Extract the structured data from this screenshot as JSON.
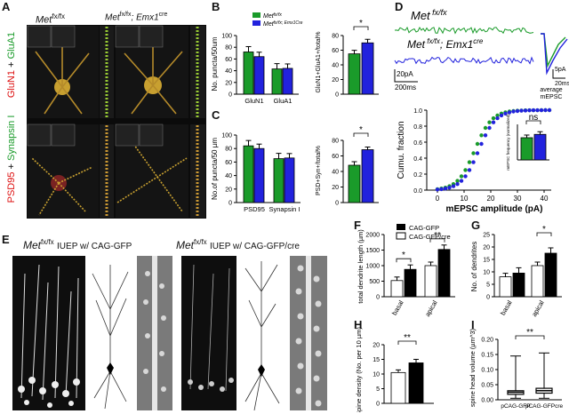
{
  "panels": {
    "A": {
      "letter": "A",
      "col_ctrl": "Met",
      "col_ctrl_sup": "fx/fx",
      "col_cko": "Met",
      "col_cko_sup": "fx/fx",
      "col_cko_rest": "; Emx1",
      "col_cko_sup2": "cre",
      "row1_red": "GluN1",
      "row1_plus": " + ",
      "row1_green": "GluA1",
      "row2_red": "PSD95",
      "row2_plus": " + ",
      "row2_green": "Synapsin I"
    },
    "B": {
      "letter": "B",
      "legend": [
        {
          "name": "Met",
          "sup": "fx/fx",
          "color": "#1a9b2a"
        },
        {
          "name": "Met",
          "sup": "fx/fx; Emx1Cre",
          "color": "#2222dd"
        }
      ],
      "ylabel": "No. puncta/50um",
      "categories": [
        "GluN1",
        "GluA1"
      ],
      "ctrl": [
        72,
        43
      ],
      "cko": [
        64,
        44
      ],
      "yticks": [
        "0",
        "20",
        "40",
        "60",
        "80",
        "100"
      ],
      "ylabel2": "GluN1+GluA1+/total%",
      "ctrl2": 55,
      "cko2": 70,
      "yticks2": [
        "0",
        "20",
        "40",
        "60",
        "80"
      ],
      "sig2": "*"
    },
    "C": {
      "letter": "C",
      "ylabel": "No.of puncta/50 µm",
      "categories": [
        "PSD95",
        "Synapsin I"
      ],
      "ctrl": [
        84,
        65
      ],
      "cko": [
        80,
        66
      ],
      "yticks": [
        "0",
        "20",
        "40",
        "60",
        "80",
        "100"
      ],
      "ylabel2": "PSD+Syn+/total%",
      "ctrl2": 48,
      "cko2": 68,
      "yticks2": [
        "0",
        "20",
        "40",
        "60",
        "80"
      ],
      "sig2": "*"
    },
    "D": {
      "letter": "D",
      "trace1": "Met",
      "trace1_sup": "fx/fx",
      "trace2": "Met",
      "trace2_sup": "fx/fx",
      "trace2_rest": "; Emx1",
      "trace2_sup2": "cre",
      "scale_left": [
        "20pA",
        "200ms"
      ],
      "scale_right": [
        "5pA",
        "20ms"
      ],
      "avg_label": [
        "average",
        "mEPSC"
      ],
      "ylabel": "Cumu. fraction",
      "xlabel": "mEPSC amplitude (pA)",
      "xticks": [
        "0",
        "10",
        "20",
        "30",
        "40"
      ],
      "yticks": [
        "0.0",
        "0.2",
        "0.4",
        "0.6",
        "0.8",
        "1.0"
      ],
      "inset_ylabel": "mEPSC frequency (normalized)",
      "inset_values": [
        1.0,
        1.15
      ],
      "inset_sig": "ns"
    },
    "E": {
      "letter": "E",
      "left_title": "Met",
      "left_sup": "fx/fx",
      "left_rest": "IUEP w/ CAG-GFP",
      "right_title": "Met",
      "right_sup": "fx/fx",
      "right_rest": "IUEP w/ CAG-GFP/cre"
    },
    "F": {
      "letter": "F",
      "legend": [
        "CAG-GFP",
        "CAG-GFP/cre"
      ],
      "ylabel": "total dendrite length (µm)",
      "categories": [
        "basal",
        "apical"
      ],
      "gfp": [
        520,
        1000
      ],
      "cre": [
        880,
        1520
      ],
      "yticks": [
        "0",
        "500",
        "1000",
        "1500",
        "2000"
      ],
      "sig": [
        "*",
        "**"
      ]
    },
    "G": {
      "letter": "G",
      "ylabel": "No. of dendrites",
      "categories": [
        "basal",
        "apical"
      ],
      "gfp": [
        8,
        12.5
      ],
      "cre": [
        9.5,
        17.5
      ],
      "yticks": [
        "0",
        "5",
        "10",
        "15",
        "20",
        "25"
      ],
      "sig": "*"
    },
    "H": {
      "letter": "H",
      "ylabel": "Spine density (No. per 10 µm)",
      "values": [
        10.5,
        13.8
      ],
      "yticks": [
        "0",
        "5",
        "10",
        "15",
        "20"
      ],
      "sig": "**"
    },
    "I": {
      "letter": "I",
      "ylabel": "spine head volume (µm^3)",
      "categories": [
        "pCAG-GFP",
        "pCAG-GFPcre"
      ],
      "yticks": [
        "0.00",
        "0.05",
        "0.10",
        "0.15",
        "0.20"
      ],
      "sig": "**",
      "boxes": [
        {
          "min": 0.005,
          "q1": 0.018,
          "median": 0.025,
          "q3": 0.03,
          "max": 0.145
        },
        {
          "min": 0.005,
          "q1": 0.022,
          "median": 0.03,
          "q3": 0.038,
          "max": 0.155
        }
      ]
    }
  }
}
